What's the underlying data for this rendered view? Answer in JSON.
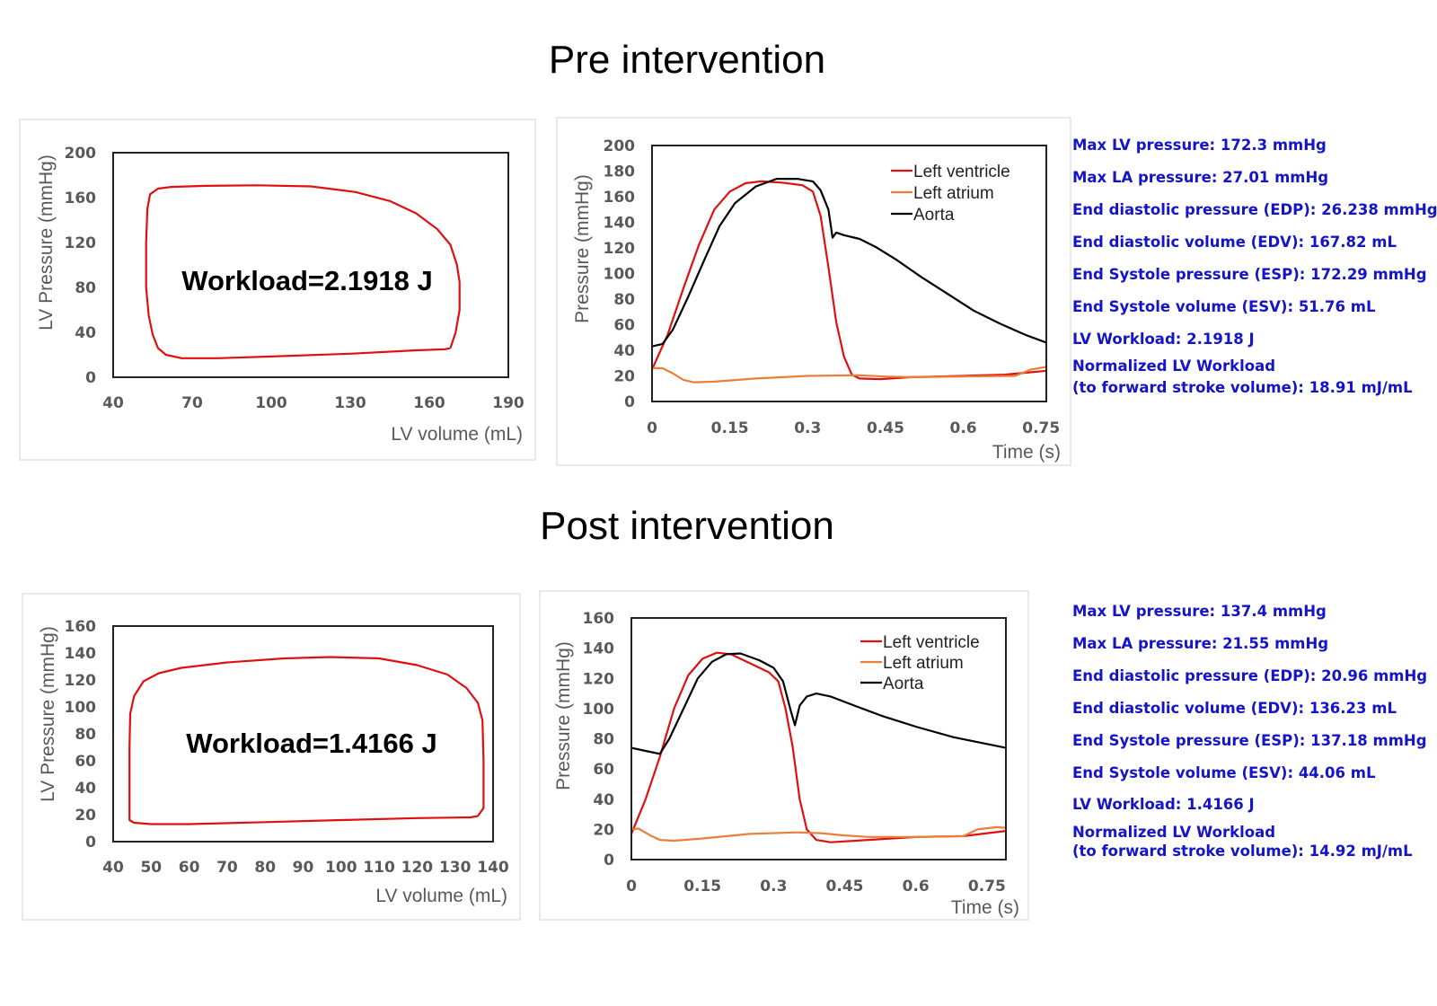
{
  "sections": [
    {
      "title": "Pre intervention",
      "stats": [
        "Max LV pressure: 172.3 mmHg",
        "Max LA pressure: 27.01 mmHg",
        "End diastolic pressure (EDP): 26.238 mmHg",
        "End diastolic volume (EDV): 167.82 mL",
        "End Systole pressure (ESP): 172.29 mmHg",
        "End Systole volume (ESV): 51.76 mL",
        "LV Workload: 2.1918 J",
        "Normalized LV Workload",
        "(to forward stroke volume): 18.91 mJ/mL"
      ]
    },
    {
      "title": "Post intervention",
      "stats": [
        "Max LV pressure: 137.4 mmHg",
        "Max LA pressure: 21.55 mmHg",
        "End diastolic pressure (EDP): 20.96 mmHg",
        "End diastolic volume (EDV): 136.23 mL",
        "End Systole pressure (ESP): 137.18 mmHg",
        "End Systole volume (ESV): 44.06 mL",
        "LV Workload: 1.4166 J",
        "Normalized LV Workload",
        "(to forward stroke volume): 14.92 mJ/mL"
      ]
    }
  ],
  "colors": {
    "lv": "#e01010",
    "la": "#e8803a",
    "aorta": "#000000",
    "stats_text": "#1414c8"
  },
  "chart_data": [
    {
      "type": "line",
      "xlabel": "LV volume (mL)",
      "ylabel": "LV Pressure (mmHg)",
      "xlim": [
        40,
        190
      ],
      "ylim": [
        0,
        200
      ],
      "xticks": [
        40,
        70,
        100,
        130,
        160,
        190
      ],
      "yticks": [
        0,
        40,
        80,
        120,
        160,
        200
      ],
      "grid": false,
      "annotation": "Workload=2.1918 J",
      "series": [
        {
          "color": "#e01010",
          "points": [
            [
              168,
              26
            ],
            [
              170,
              40
            ],
            [
              171.5,
              60
            ],
            [
              171.5,
              85
            ],
            [
              170.5,
              100
            ],
            [
              168,
              118
            ],
            [
              163,
              132
            ],
            [
              155,
              146
            ],
            [
              145,
              157
            ],
            [
              132,
              165
            ],
            [
              115,
              170
            ],
            [
              95,
              171
            ],
            [
              75,
              170.5
            ],
            [
              62,
              169.5
            ],
            [
              57,
              168
            ],
            [
              54,
              163
            ],
            [
              53,
              150
            ],
            [
              52.5,
              120
            ],
            [
              52.5,
              80
            ],
            [
              53.5,
              55
            ],
            [
              55,
              38
            ],
            [
              57,
              26
            ],
            [
              60,
              20
            ],
            [
              66,
              17
            ],
            [
              80,
              17
            ],
            [
              100,
              18.5
            ],
            [
              130,
              21
            ],
            [
              155,
              24
            ],
            [
              166,
              25
            ],
            [
              168,
              26
            ]
          ]
        }
      ]
    },
    {
      "type": "line",
      "xlabel": "Time (s)",
      "ylabel": "Pressure (mmHg)",
      "xlim": [
        0,
        0.76
      ],
      "ylim": [
        0,
        200
      ],
      "xticks": [
        0,
        0.15,
        0.3,
        0.45,
        0.6,
        0.75
      ],
      "yticks": [
        0,
        20,
        40,
        60,
        80,
        100,
        120,
        140,
        160,
        180,
        200
      ],
      "grid": false,
      "legend": "top-right",
      "series": [
        {
          "name": "Left ventricle",
          "color": "#e01010",
          "points": [
            [
              0,
              25
            ],
            [
              0.03,
              52
            ],
            [
              0.06,
              88
            ],
            [
              0.09,
              122
            ],
            [
              0.12,
              150
            ],
            [
              0.15,
              164
            ],
            [
              0.18,
              170.5
            ],
            [
              0.21,
              172
            ],
            [
              0.25,
              171
            ],
            [
              0.29,
              169
            ],
            [
              0.31,
              164
            ],
            [
              0.325,
              145
            ],
            [
              0.34,
              105
            ],
            [
              0.355,
              62
            ],
            [
              0.37,
              35
            ],
            [
              0.385,
              21
            ],
            [
              0.4,
              18
            ],
            [
              0.44,
              17.5
            ],
            [
              0.5,
              19
            ],
            [
              0.6,
              20
            ],
            [
              0.68,
              21
            ],
            [
              0.76,
              24
            ]
          ]
        },
        {
          "name": "Left atrium",
          "color": "#e8803a",
          "points": [
            [
              0,
              26
            ],
            [
              0.02,
              26
            ],
            [
              0.04,
              22
            ],
            [
              0.06,
              17
            ],
            [
              0.08,
              15
            ],
            [
              0.12,
              15.5
            ],
            [
              0.2,
              18
            ],
            [
              0.3,
              20
            ],
            [
              0.4,
              20.5
            ],
            [
              0.45,
              19.5
            ],
            [
              0.5,
              19
            ],
            [
              0.6,
              19.5
            ],
            [
              0.7,
              20
            ],
            [
              0.73,
              25
            ],
            [
              0.76,
              27
            ]
          ]
        },
        {
          "name": "Aorta",
          "color": "#000000",
          "points": [
            [
              0,
              43
            ],
            [
              0.02,
              45
            ],
            [
              0.04,
              56
            ],
            [
              0.07,
              82
            ],
            [
              0.1,
              110
            ],
            [
              0.13,
              137
            ],
            [
              0.16,
              155
            ],
            [
              0.2,
              168
            ],
            [
              0.24,
              174
            ],
            [
              0.28,
              174
            ],
            [
              0.31,
              172
            ],
            [
              0.325,
              165
            ],
            [
              0.34,
              150
            ],
            [
              0.348,
              128
            ],
            [
              0.355,
              132
            ],
            [
              0.37,
              130
            ],
            [
              0.4,
              127
            ],
            [
              0.43,
              121
            ],
            [
              0.47,
              111
            ],
            [
              0.52,
              97
            ],
            [
              0.57,
              84
            ],
            [
              0.62,
              71
            ],
            [
              0.67,
              61
            ],
            [
              0.72,
              52
            ],
            [
              0.76,
              46
            ]
          ]
        }
      ]
    },
    {
      "type": "line",
      "xlabel": "LV volume (mL)",
      "ylabel": "LV Pressure (mmHg)",
      "xlim": [
        40,
        140
      ],
      "ylim": [
        0,
        160
      ],
      "xticks": [
        40,
        50,
        60,
        70,
        80,
        90,
        100,
        110,
        120,
        130,
        140
      ],
      "yticks": [
        0,
        20,
        40,
        60,
        80,
        100,
        120,
        140,
        160
      ],
      "grid": false,
      "annotation": "Workload=1.4166 J",
      "series": [
        {
          "color": "#e01010",
          "points": [
            [
              136,
              19
            ],
            [
              137.5,
              25
            ],
            [
              137.5,
              60
            ],
            [
              137.2,
              90
            ],
            [
              136,
              103
            ],
            [
              133,
              114
            ],
            [
              128,
              124
            ],
            [
              120,
              131
            ],
            [
              110,
              136
            ],
            [
              97,
              137
            ],
            [
              85,
              136
            ],
            [
              70,
              133
            ],
            [
              58,
              129
            ],
            [
              52,
              125
            ],
            [
              48,
              119
            ],
            [
              45.5,
              108
            ],
            [
              44.5,
              95
            ],
            [
              44.3,
              70
            ],
            [
              44.3,
              40
            ],
            [
              44.3,
              16
            ],
            [
              45.5,
              14
            ],
            [
              50,
              13
            ],
            [
              60,
              13
            ],
            [
              80,
              14.5
            ],
            [
              100,
              16
            ],
            [
              120,
              17.5
            ],
            [
              134,
              18
            ],
            [
              136,
              19
            ]
          ]
        }
      ]
    },
    {
      "type": "line",
      "xlabel": "Time (s)",
      "ylabel": "Pressure (mmHg)",
      "xlim": [
        0,
        0.79
      ],
      "ylim": [
        0,
        160
      ],
      "xticks": [
        0,
        0.15,
        0.3,
        0.45,
        0.6,
        0.75
      ],
      "yticks": [
        0,
        20,
        40,
        60,
        80,
        100,
        120,
        140,
        160
      ],
      "grid": false,
      "legend": "top-right",
      "series": [
        {
          "name": "Left ventricle",
          "color": "#e01010",
          "points": [
            [
              0,
              17
            ],
            [
              0.03,
              40
            ],
            [
              0.06,
              68
            ],
            [
              0.09,
              100
            ],
            [
              0.12,
              122
            ],
            [
              0.15,
              133
            ],
            [
              0.18,
              137
            ],
            [
              0.21,
              136
            ],
            [
              0.25,
              130
            ],
            [
              0.29,
              124
            ],
            [
              0.31,
              118
            ],
            [
              0.325,
              100
            ],
            [
              0.34,
              75
            ],
            [
              0.355,
              40
            ],
            [
              0.37,
              20
            ],
            [
              0.39,
              13
            ],
            [
              0.42,
              11.5
            ],
            [
              0.5,
              13
            ],
            [
              0.6,
              15
            ],
            [
              0.7,
              15.5
            ],
            [
              0.79,
              19
            ]
          ]
        },
        {
          "name": "Left atrium",
          "color": "#e8803a",
          "points": [
            [
              0,
              20
            ],
            [
              0.015,
              20.5
            ],
            [
              0.04,
              16
            ],
            [
              0.06,
              13
            ],
            [
              0.09,
              12.5
            ],
            [
              0.15,
              14
            ],
            [
              0.25,
              17
            ],
            [
              0.35,
              18
            ],
            [
              0.4,
              17.5
            ],
            [
              0.45,
              16
            ],
            [
              0.5,
              15
            ],
            [
              0.6,
              15
            ],
            [
              0.7,
              15.5
            ],
            [
              0.73,
              20
            ],
            [
              0.77,
              21.5
            ],
            [
              0.79,
              21
            ]
          ]
        },
        {
          "name": "Aorta",
          "color": "#000000",
          "points": [
            [
              0,
              74
            ],
            [
              0.03,
              72
            ],
            [
              0.06,
              70
            ],
            [
              0.08,
              80
            ],
            [
              0.11,
              100
            ],
            [
              0.14,
              120
            ],
            [
              0.17,
              131
            ],
            [
              0.2,
              136
            ],
            [
              0.23,
              136.5
            ],
            [
              0.27,
              132
            ],
            [
              0.3,
              127
            ],
            [
              0.32,
              118
            ],
            [
              0.335,
              100
            ],
            [
              0.345,
              89
            ],
            [
              0.355,
              102
            ],
            [
              0.37,
              108
            ],
            [
              0.39,
              110
            ],
            [
              0.42,
              108
            ],
            [
              0.47,
              102
            ],
            [
              0.53,
              95
            ],
            [
              0.6,
              88
            ],
            [
              0.68,
              81
            ],
            [
              0.79,
              74
            ]
          ]
        }
      ]
    }
  ]
}
